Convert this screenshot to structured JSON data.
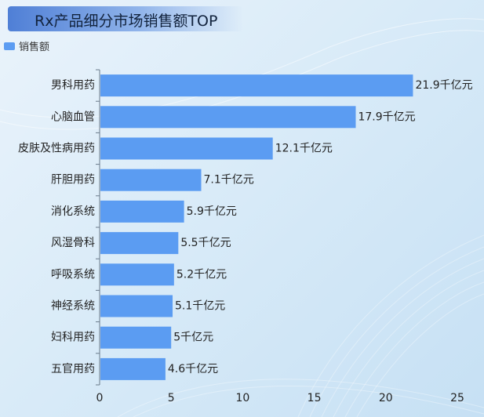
{
  "header": {
    "title": "Rx产品细分市场销售额TOP"
  },
  "legend": {
    "label": "销售额"
  },
  "colors": {
    "bar": "#5b9cf2",
    "axis": "#6a7a8a",
    "text": "#222222"
  },
  "chart_data": {
    "type": "bar",
    "orientation": "horizontal",
    "title": "Rx产品细分市场销售额TOP",
    "categories": [
      "男科用药",
      "心脑血管",
      "皮肤及性病用药",
      "肝胆用药",
      "消化系统",
      "风湿骨科",
      "呼吸系统",
      "神经系统",
      "妇科用药",
      "五官用药"
    ],
    "series": [
      {
        "name": "销售额",
        "values": [
          21.9,
          17.9,
          12.1,
          7.1,
          5.9,
          5.5,
          5.2,
          5.1,
          5,
          4.6
        ],
        "labels": [
          "21.9千亿元",
          "17.9千亿元",
          "12.1千亿元",
          "7.1千亿元",
          "5.9千亿元",
          "5.5千亿元",
          "5.2千亿元",
          "5.1千亿元",
          "5千亿元",
          "4.6千亿元"
        ]
      }
    ],
    "xlim": [
      0,
      25
    ],
    "xticks": [
      "0",
      "5",
      "10",
      "15",
      "20",
      "25"
    ],
    "xlabel": "",
    "ylabel": "",
    "legend_position": "top-left",
    "grid": false
  }
}
